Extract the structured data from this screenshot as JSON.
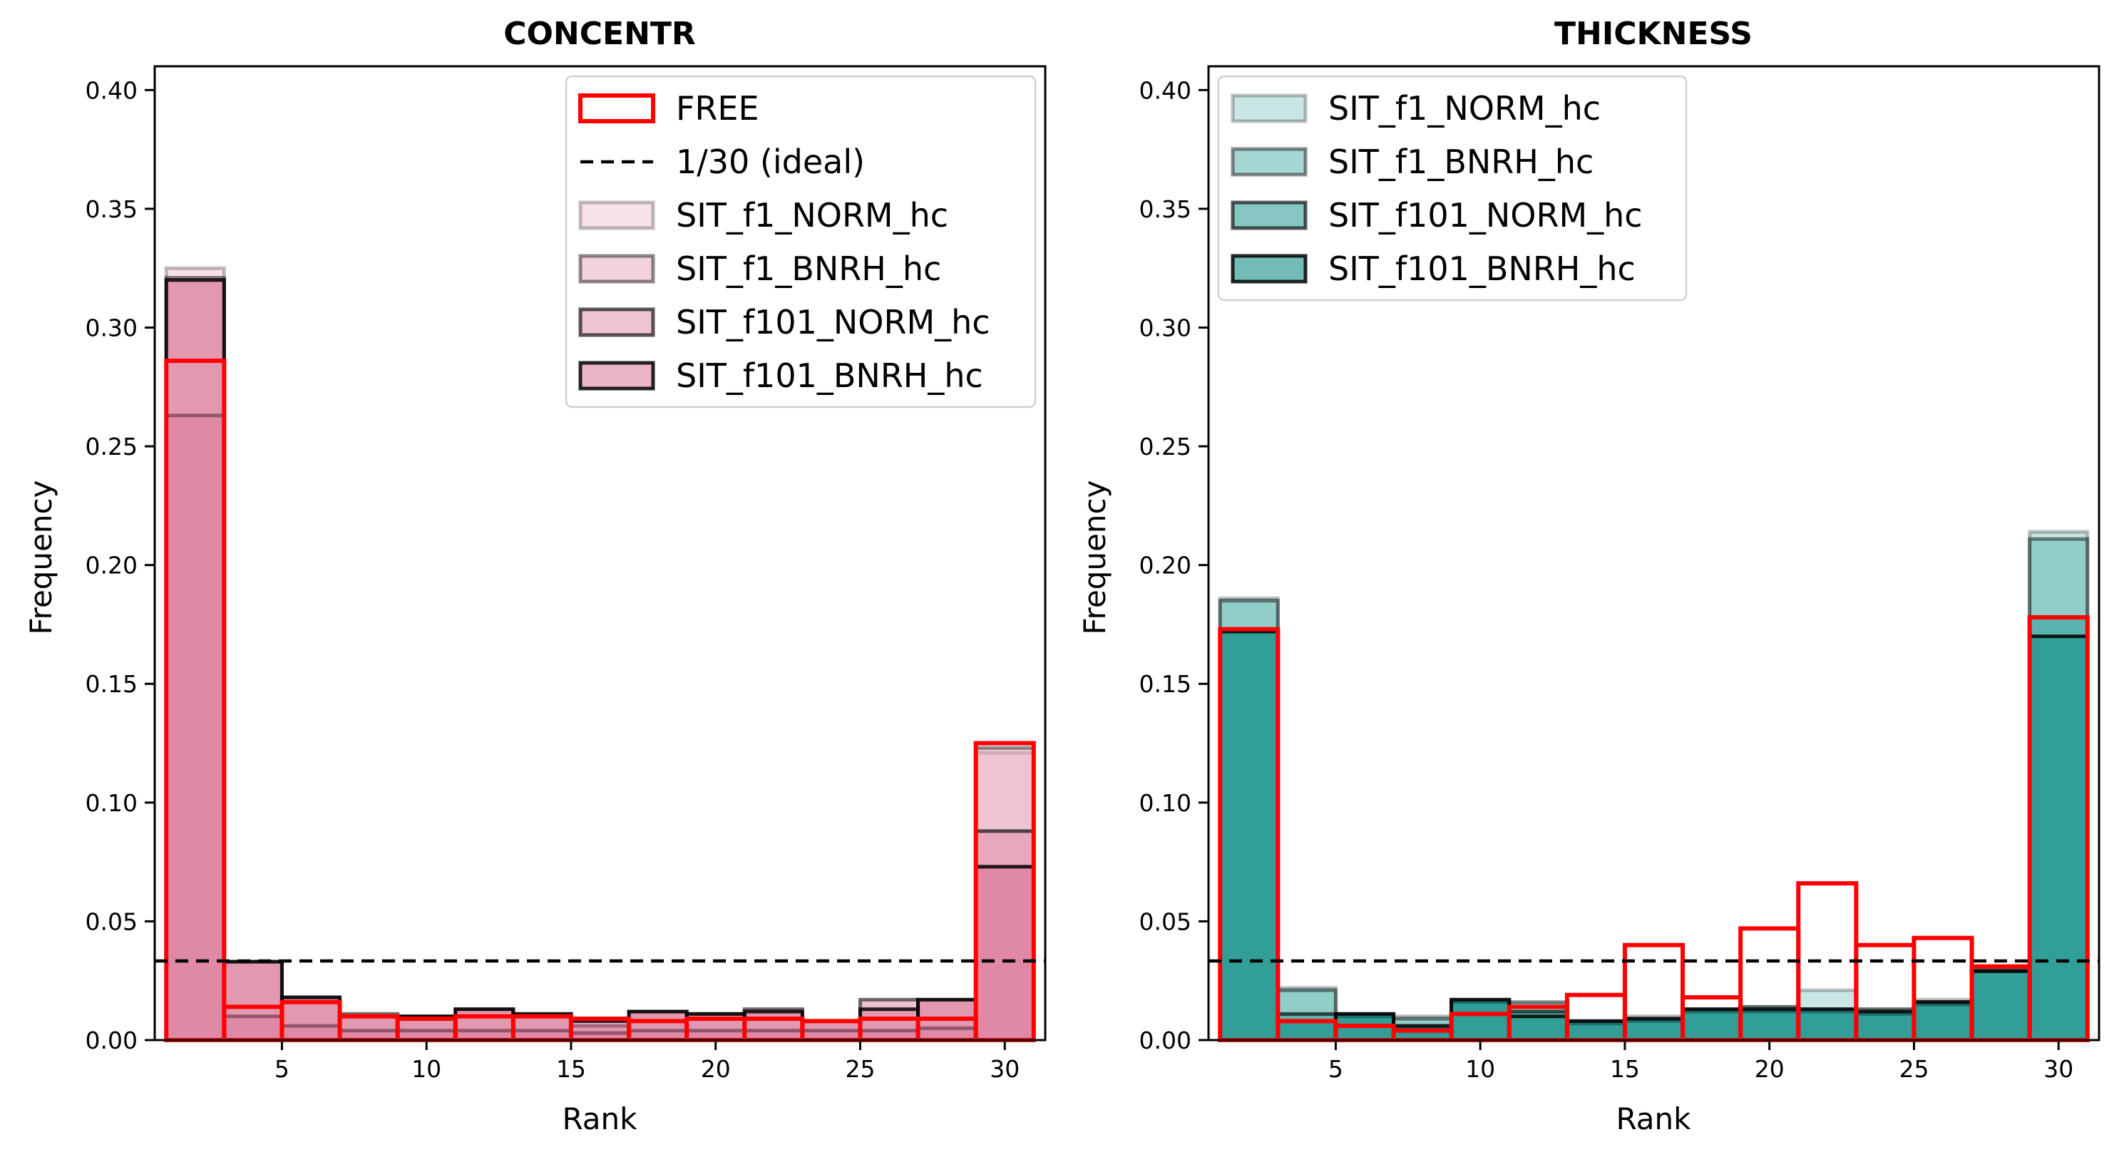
{
  "figure": {
    "ideal_line_value": 0.03333
  },
  "chart_data": [
    {
      "type": "bar",
      "title": "CONCENTR",
      "xlabel": "Rank",
      "ylabel": "Frequency",
      "xlim": [
        0.6,
        31.4
      ],
      "ylim": [
        0,
        0.41
      ],
      "xticks": [
        "5",
        "10",
        "15",
        "20",
        "25",
        "30"
      ],
      "yticks": [
        "0.00",
        "0.05",
        "0.10",
        "0.15",
        "0.20",
        "0.25",
        "0.30",
        "0.35",
        "0.40"
      ],
      "bin_edges": [
        1,
        3,
        5,
        7,
        9,
        11,
        13,
        15,
        17,
        19,
        21,
        23,
        25,
        27,
        29,
        31
      ],
      "legend_position": "upper right",
      "ideal_label": "1/30 (ideal)",
      "series": [
        {
          "name": "FREE",
          "style": "outline",
          "color": "#ff0000",
          "values": [
            0.286,
            0.014,
            0.016,
            0.01,
            0.009,
            0.01,
            0.01,
            0.009,
            0.008,
            0.009,
            0.009,
            0.008,
            0.009,
            0.009,
            0.125
          ]
        },
        {
          "name": "SIT_f1_NORM_hc",
          "style": "filled",
          "fill": "#f2c6d4",
          "fill_opacity": 0.5,
          "edge_opacity": 0.25,
          "values": [
            0.325,
            0.033,
            0.018,
            0.011,
            0.01,
            0.013,
            0.011,
            0.006,
            0.012,
            0.011,
            0.013,
            0.008,
            0.017,
            0.017,
            0.121
          ]
        },
        {
          "name": "SIT_f1_BNRH_hc",
          "style": "filled",
          "fill": "#e6a6bb",
          "fill_opacity": 0.5,
          "edge_opacity": 0.45,
          "values": [
            0.321,
            0.033,
            0.018,
            0.011,
            0.01,
            0.013,
            0.011,
            0.006,
            0.012,
            0.011,
            0.013,
            0.008,
            0.017,
            0.017,
            0.123
          ]
        },
        {
          "name": "SIT_f101_NORM_hc",
          "style": "filled",
          "fill": "#e08aa6",
          "fill_opacity": 0.5,
          "edge_opacity": 0.65,
          "values": [
            0.263,
            0.01,
            0.006,
            0.004,
            0.004,
            0.004,
            0.004,
            0.003,
            0.004,
            0.004,
            0.004,
            0.004,
            0.004,
            0.005,
            0.088
          ]
        },
        {
          "name": "SIT_f101_BNRH_hc",
          "style": "filled",
          "fill": "#d86b8f",
          "fill_opacity": 0.5,
          "edge_opacity": 0.85,
          "values": [
            0.32,
            0.033,
            0.018,
            0.01,
            0.01,
            0.013,
            0.011,
            0.008,
            0.012,
            0.011,
            0.012,
            0.008,
            0.013,
            0.017,
            0.073
          ]
        }
      ]
    },
    {
      "type": "bar",
      "title": "THICKNESS",
      "xlabel": "Rank",
      "ylabel": "Frequency",
      "xlim": [
        0.6,
        31.4
      ],
      "ylim": [
        0,
        0.41
      ],
      "xticks": [
        "5",
        "10",
        "15",
        "20",
        "25",
        "30"
      ],
      "yticks": [
        "0.00",
        "0.05",
        "0.10",
        "0.15",
        "0.20",
        "0.25",
        "0.30",
        "0.35",
        "0.40"
      ],
      "bin_edges": [
        1,
        3,
        5,
        7,
        9,
        11,
        13,
        15,
        17,
        19,
        21,
        23,
        25,
        27,
        29,
        31
      ],
      "legend_position": "upper left",
      "series": [
        {
          "name": "FREE",
          "style": "outline",
          "color": "#ff0000",
          "in_legend": false,
          "values": [
            0.173,
            0.008,
            0.006,
            0.004,
            0.011,
            0.014,
            0.019,
            0.04,
            0.018,
            0.047,
            0.066,
            0.04,
            0.043,
            0.031,
            0.178
          ]
        },
        {
          "name": "SIT_f1_NORM_hc",
          "style": "filled",
          "fill": "#a3d6d2",
          "fill_opacity": 0.6,
          "edge_opacity": 0.25,
          "values": [
            0.186,
            0.022,
            0.011,
            0.01,
            0.017,
            0.015,
            0.008,
            0.01,
            0.013,
            0.014,
            0.021,
            0.013,
            0.017,
            0.03,
            0.214
          ]
        },
        {
          "name": "SIT_f1_BNRH_hc",
          "style": "filled",
          "fill": "#6cbdb8",
          "fill_opacity": 0.6,
          "edge_opacity": 0.45,
          "values": [
            0.185,
            0.021,
            0.011,
            0.009,
            0.017,
            0.016,
            0.008,
            0.009,
            0.013,
            0.014,
            0.013,
            0.013,
            0.016,
            0.03,
            0.211
          ]
        },
        {
          "name": "SIT_f101_NORM_hc",
          "style": "filled",
          "fill": "#37a19b",
          "fill_opacity": 0.6,
          "edge_opacity": 0.65,
          "values": [
            0.173,
            0.011,
            0.01,
            0.005,
            0.016,
            0.012,
            0.007,
            0.008,
            0.012,
            0.012,
            0.012,
            0.011,
            0.015,
            0.029,
            0.178
          ]
        },
        {
          "name": "SIT_f101_BNRH_hc",
          "style": "filled",
          "fill": "#168f89",
          "fill_opacity": 0.6,
          "edge_opacity": 0.85,
          "values": [
            0.172,
            0.008,
            0.011,
            0.006,
            0.017,
            0.01,
            0.008,
            0.009,
            0.013,
            0.013,
            0.013,
            0.012,
            0.016,
            0.029,
            0.17
          ]
        }
      ]
    }
  ]
}
